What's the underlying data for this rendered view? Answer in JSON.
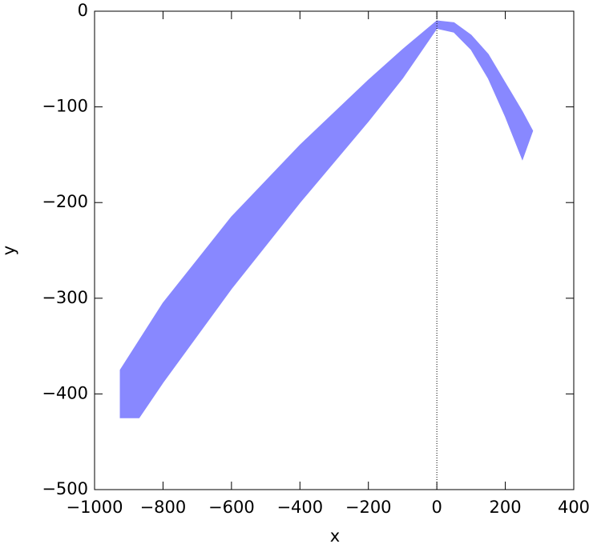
{
  "chart_data": {
    "type": "area_band",
    "xlabel": "x",
    "ylabel": "y",
    "series": [
      {
        "x": [
          -925,
          -800,
          -600,
          -400,
          -200,
          -100,
          0,
          50,
          100,
          150,
          200,
          250,
          280
        ],
        "values": [
          -375,
          -305,
          -215,
          -140,
          -72,
          -40,
          -10,
          -12,
          -25,
          -45,
          -75,
          -105,
          -125
        ]
      },
      {
        "x": [
          -925,
          -870,
          -800,
          -600,
          -400,
          -200,
          -100,
          0,
          50,
          100,
          150,
          200,
          250
        ],
        "values": [
          -425,
          -425,
          -388,
          -290,
          -200,
          -115,
          -70,
          -18,
          -22,
          -40,
          -70,
          -110,
          -155
        ]
      }
    ],
    "color": "#8888ff",
    "xlim": [
      -1000,
      400
    ],
    "ylim": [
      -500,
      0
    ],
    "xticks": [
      {
        "value": -1000,
        "label": "−1000"
      },
      {
        "value": -800,
        "label": "−800"
      },
      {
        "value": -600,
        "label": "−600"
      },
      {
        "value": -400,
        "label": "−400"
      },
      {
        "value": -200,
        "label": "−200"
      },
      0,
      200,
      400
    ],
    "yticks": [
      0,
      {
        "value": -100,
        "label": "−100"
      },
      {
        "value": -200,
        "label": "−200"
      },
      {
        "value": -300,
        "label": "−300"
      },
      {
        "value": -400,
        "label": "−400"
      },
      {
        "value": -500,
        "label": "−500"
      }
    ],
    "zero_line": true
  }
}
